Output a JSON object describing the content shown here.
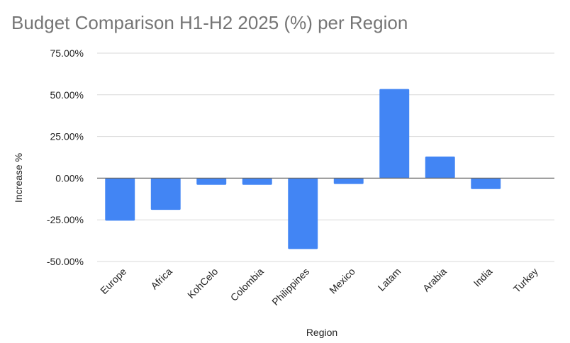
{
  "chart_data": {
    "type": "bar",
    "title": "Budget Comparison H1-H2 2025 (%) per Region",
    "xlabel": "Region",
    "ylabel": "Increase %",
    "categories": [
      "Europe",
      "Africa",
      "KohCelo",
      "Colombia",
      "Philippines",
      "Mexico",
      "Latam",
      "Arabia",
      "India",
      "Turkey"
    ],
    "values": [
      -25.5,
      -19.0,
      -4.0,
      -4.0,
      -42.5,
      -3.5,
      53.5,
      13.0,
      -6.5,
      0.0
    ],
    "ylim": [
      -50,
      75
    ],
    "yticks": [
      "-50.00%",
      "-25.00%",
      "0.00%",
      "25.00%",
      "50.00%",
      "75.00%"
    ],
    "ytick_values": [
      -50,
      -25,
      0,
      25,
      50,
      75
    ],
    "grid": true,
    "legend": "none",
    "colors": {
      "bar": "#4285F4",
      "grid": "#d9d9d9",
      "zero_line": "#666666",
      "title": "#757575"
    }
  }
}
